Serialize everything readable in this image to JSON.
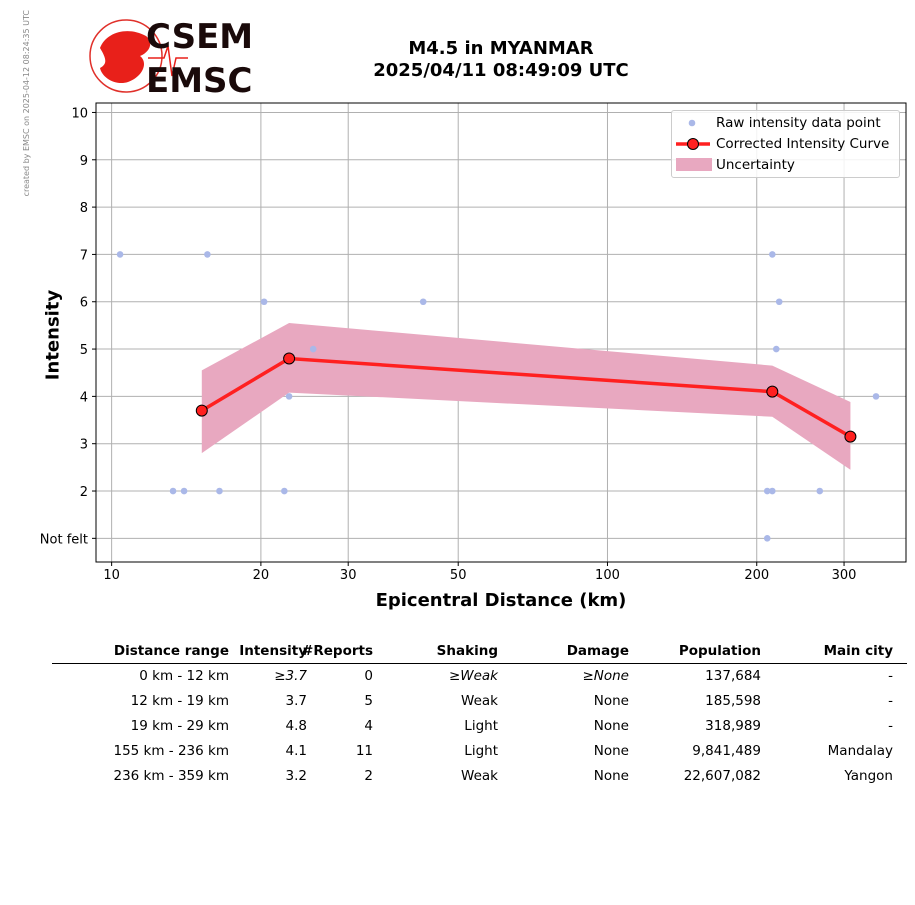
{
  "side_note": "created by EMSC on 2025-04-12 08:24:35 UTC",
  "logo": {
    "line1": "CSEM",
    "line2": "EMSC"
  },
  "colors": {
    "raw": "#aab8e8",
    "curve": "#ff2020",
    "uncertainty": "#e8a8c0",
    "grid": "#b0b0b0"
  },
  "chart_data": {
    "type": "scatter",
    "title": "M4.5 in MYANMAR",
    "subtitle": "2025/04/11 08:49:09 UTC",
    "xlabel": "Epicentral Distance (km)",
    "ylabel": "Intensity",
    "xscale": "log",
    "xlim": [
      9.3,
      400
    ],
    "ylim": [
      0.5,
      10.2
    ],
    "x_ticks": [
      10,
      20,
      30,
      50,
      100,
      200,
      300
    ],
    "y_ticks": [
      1,
      2,
      3,
      4,
      5,
      6,
      7,
      8,
      9,
      10
    ],
    "y_tick_labels": [
      "Not felt",
      "2",
      "3",
      "4",
      "5",
      "6",
      "7",
      "8",
      "9",
      "10"
    ],
    "grid": true,
    "legend_position": "top-right",
    "legend": [
      "Raw intensity data point",
      "Corrected Intensity Curve",
      "Uncertainty"
    ],
    "raw_points": [
      {
        "x": 10.4,
        "y": 7
      },
      {
        "x": 15.6,
        "y": 7
      },
      {
        "x": 20.3,
        "y": 6
      },
      {
        "x": 42.5,
        "y": 6
      },
      {
        "x": 25.5,
        "y": 5
      },
      {
        "x": 22.8,
        "y": 4
      },
      {
        "x": 13.3,
        "y": 2
      },
      {
        "x": 14.0,
        "y": 2
      },
      {
        "x": 16.5,
        "y": 2
      },
      {
        "x": 22.3,
        "y": 2
      },
      {
        "x": 215,
        "y": 7
      },
      {
        "x": 222,
        "y": 6
      },
      {
        "x": 219,
        "y": 5
      },
      {
        "x": 210,
        "y": 2
      },
      {
        "x": 215,
        "y": 2
      },
      {
        "x": 268,
        "y": 2
      },
      {
        "x": 348,
        "y": 4
      },
      {
        "x": 210,
        "y": 1
      }
    ],
    "curve": {
      "x": [
        15.2,
        22.8,
        215,
        309
      ],
      "y": [
        3.7,
        4.8,
        4.1,
        3.15
      ]
    },
    "uncertainty": {
      "x": [
        15.2,
        22.8,
        215,
        309
      ],
      "upper": [
        4.55,
        5.55,
        4.65,
        3.88
      ],
      "lower": [
        2.8,
        4.08,
        3.57,
        2.45
      ]
    }
  },
  "table": {
    "headers": [
      "Distance range",
      "Intensity",
      "#Reports",
      "Shaking",
      "Damage",
      "Population",
      "Main city"
    ],
    "rows": [
      [
        "0 km -   12 km",
        "≥3.7",
        "0",
        "≥Weak",
        "≥None",
        "137,684",
        "-"
      ],
      [
        "12 km -   19 km",
        "3.7",
        "5",
        "Weak",
        "None",
        "185,598",
        "-"
      ],
      [
        "19 km -   29 km",
        "4.8",
        "4",
        "Light",
        "None",
        "318,989",
        "-"
      ],
      [
        "155 km -  236 km",
        "4.1",
        "11",
        "Light",
        "None",
        "9,841,489",
        "Mandalay"
      ],
      [
        "236 km -  359 km",
        "3.2",
        "2",
        "Weak",
        "None",
        "22,607,082",
        "Yangon"
      ]
    ]
  }
}
